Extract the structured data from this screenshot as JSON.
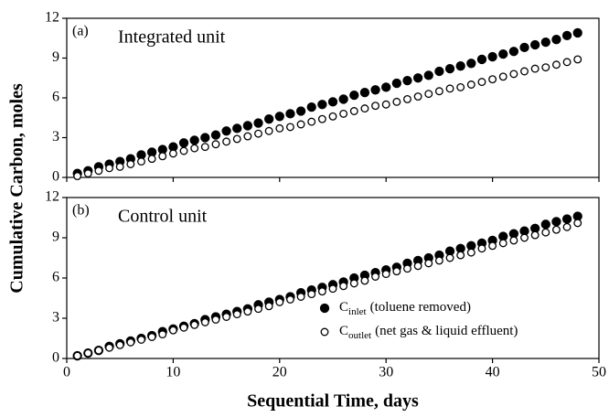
{
  "chart_data": [
    {
      "type": "scatter",
      "annotation_tag": "(a)",
      "annotation": "Integrated unit",
      "ylabel": "Cumulative Carbon, moles",
      "x": [
        1,
        2,
        3,
        4,
        5,
        6,
        7,
        8,
        9,
        10,
        11,
        12,
        13,
        14,
        15,
        16,
        17,
        18,
        19,
        20,
        21,
        22,
        23,
        24,
        25,
        26,
        27,
        28,
        29,
        30,
        31,
        32,
        33,
        34,
        35,
        36,
        37,
        38,
        39,
        40,
        41,
        42,
        43,
        44,
        45,
        46,
        47,
        48
      ],
      "series": [
        {
          "color": "#000000",
          "marker": "filled",
          "values": [
            0.3,
            0.5,
            0.8,
            1.0,
            1.2,
            1.4,
            1.7,
            1.9,
            2.1,
            2.3,
            2.6,
            2.8,
            3.0,
            3.2,
            3.5,
            3.7,
            3.9,
            4.1,
            4.4,
            4.6,
            4.8,
            5.0,
            5.3,
            5.5,
            5.7,
            5.9,
            6.2,
            6.4,
            6.6,
            6.8,
            7.1,
            7.3,
            7.5,
            7.7,
            8.0,
            8.2,
            8.4,
            8.6,
            8.9,
            9.1,
            9.3,
            9.5,
            9.8,
            10.0,
            10.2,
            10.4,
            10.7,
            10.9
          ]
        },
        {
          "color": "#000000",
          "marker": "open",
          "values": [
            0.1,
            0.3,
            0.5,
            0.7,
            0.8,
            1.0,
            1.2,
            1.4,
            1.6,
            1.8,
            2.0,
            2.2,
            2.3,
            2.5,
            2.7,
            2.9,
            3.1,
            3.3,
            3.5,
            3.7,
            3.8,
            4.0,
            4.2,
            4.4,
            4.6,
            4.8,
            5.0,
            5.2,
            5.4,
            5.5,
            5.7,
            5.9,
            6.1,
            6.3,
            6.5,
            6.7,
            6.8,
            7.0,
            7.2,
            7.4,
            7.6,
            7.8,
            8.0,
            8.2,
            8.3,
            8.5,
            8.7,
            8.9
          ]
        }
      ],
      "xlim": [
        0,
        50
      ],
      "xticks": [
        0,
        10,
        20,
        30,
        40,
        50
      ],
      "xticklabels": false,
      "ylim": [
        0,
        12
      ],
      "yticks": [
        0,
        3,
        6,
        9,
        12
      ]
    },
    {
      "type": "scatter",
      "annotation_tag": "(b)",
      "annotation": "Control unit",
      "xlabel": "Sequential Time, days",
      "x": [
        1,
        2,
        3,
        4,
        5,
        6,
        7,
        8,
        9,
        10,
        11,
        12,
        13,
        14,
        15,
        16,
        17,
        18,
        19,
        20,
        21,
        22,
        23,
        24,
        25,
        26,
        27,
        28,
        29,
        30,
        31,
        32,
        33,
        34,
        35,
        36,
        37,
        38,
        39,
        40,
        41,
        42,
        43,
        44,
        45,
        46,
        47,
        48
      ],
      "series": [
        {
          "label": {
            "symbol": "C",
            "subscript": "inlet",
            "text": "(toluene removed)"
          },
          "color": "#000000",
          "marker": "filled",
          "values": [
            0.2,
            0.4,
            0.6,
            0.9,
            1.1,
            1.3,
            1.5,
            1.7,
            2.0,
            2.2,
            2.4,
            2.6,
            2.9,
            3.1,
            3.3,
            3.5,
            3.7,
            4.0,
            4.2,
            4.4,
            4.6,
            4.9,
            5.1,
            5.3,
            5.5,
            5.7,
            6.0,
            6.2,
            6.4,
            6.6,
            6.8,
            7.1,
            7.3,
            7.5,
            7.7,
            8.0,
            8.2,
            8.4,
            8.6,
            8.8,
            9.1,
            9.3,
            9.5,
            9.7,
            10.0,
            10.2,
            10.4,
            10.6
          ]
        },
        {
          "label": {
            "symbol": "C",
            "subscript": "outlet",
            "text": "(net gas & liquid effluent)"
          },
          "color": "#000000",
          "marker": "open",
          "values": [
            0.2,
            0.4,
            0.6,
            0.8,
            1.0,
            1.2,
            1.4,
            1.6,
            1.8,
            2.1,
            2.3,
            2.5,
            2.7,
            2.9,
            3.1,
            3.3,
            3.5,
            3.7,
            3.9,
            4.2,
            4.4,
            4.6,
            4.8,
            5.0,
            5.2,
            5.4,
            5.6,
            5.8,
            6.1,
            6.3,
            6.5,
            6.7,
            6.9,
            7.1,
            7.3,
            7.5,
            7.7,
            7.9,
            8.2,
            8.4,
            8.6,
            8.8,
            9.0,
            9.2,
            9.4,
            9.6,
            9.8,
            10.1
          ]
        }
      ],
      "xlim": [
        0,
        50
      ],
      "xticks": [
        0,
        10,
        20,
        30,
        40,
        50
      ],
      "xticklabels": true,
      "ylim": [
        0,
        12
      ],
      "yticks": [
        0,
        3,
        6,
        9,
        12
      ],
      "legend": "lower right"
    }
  ]
}
